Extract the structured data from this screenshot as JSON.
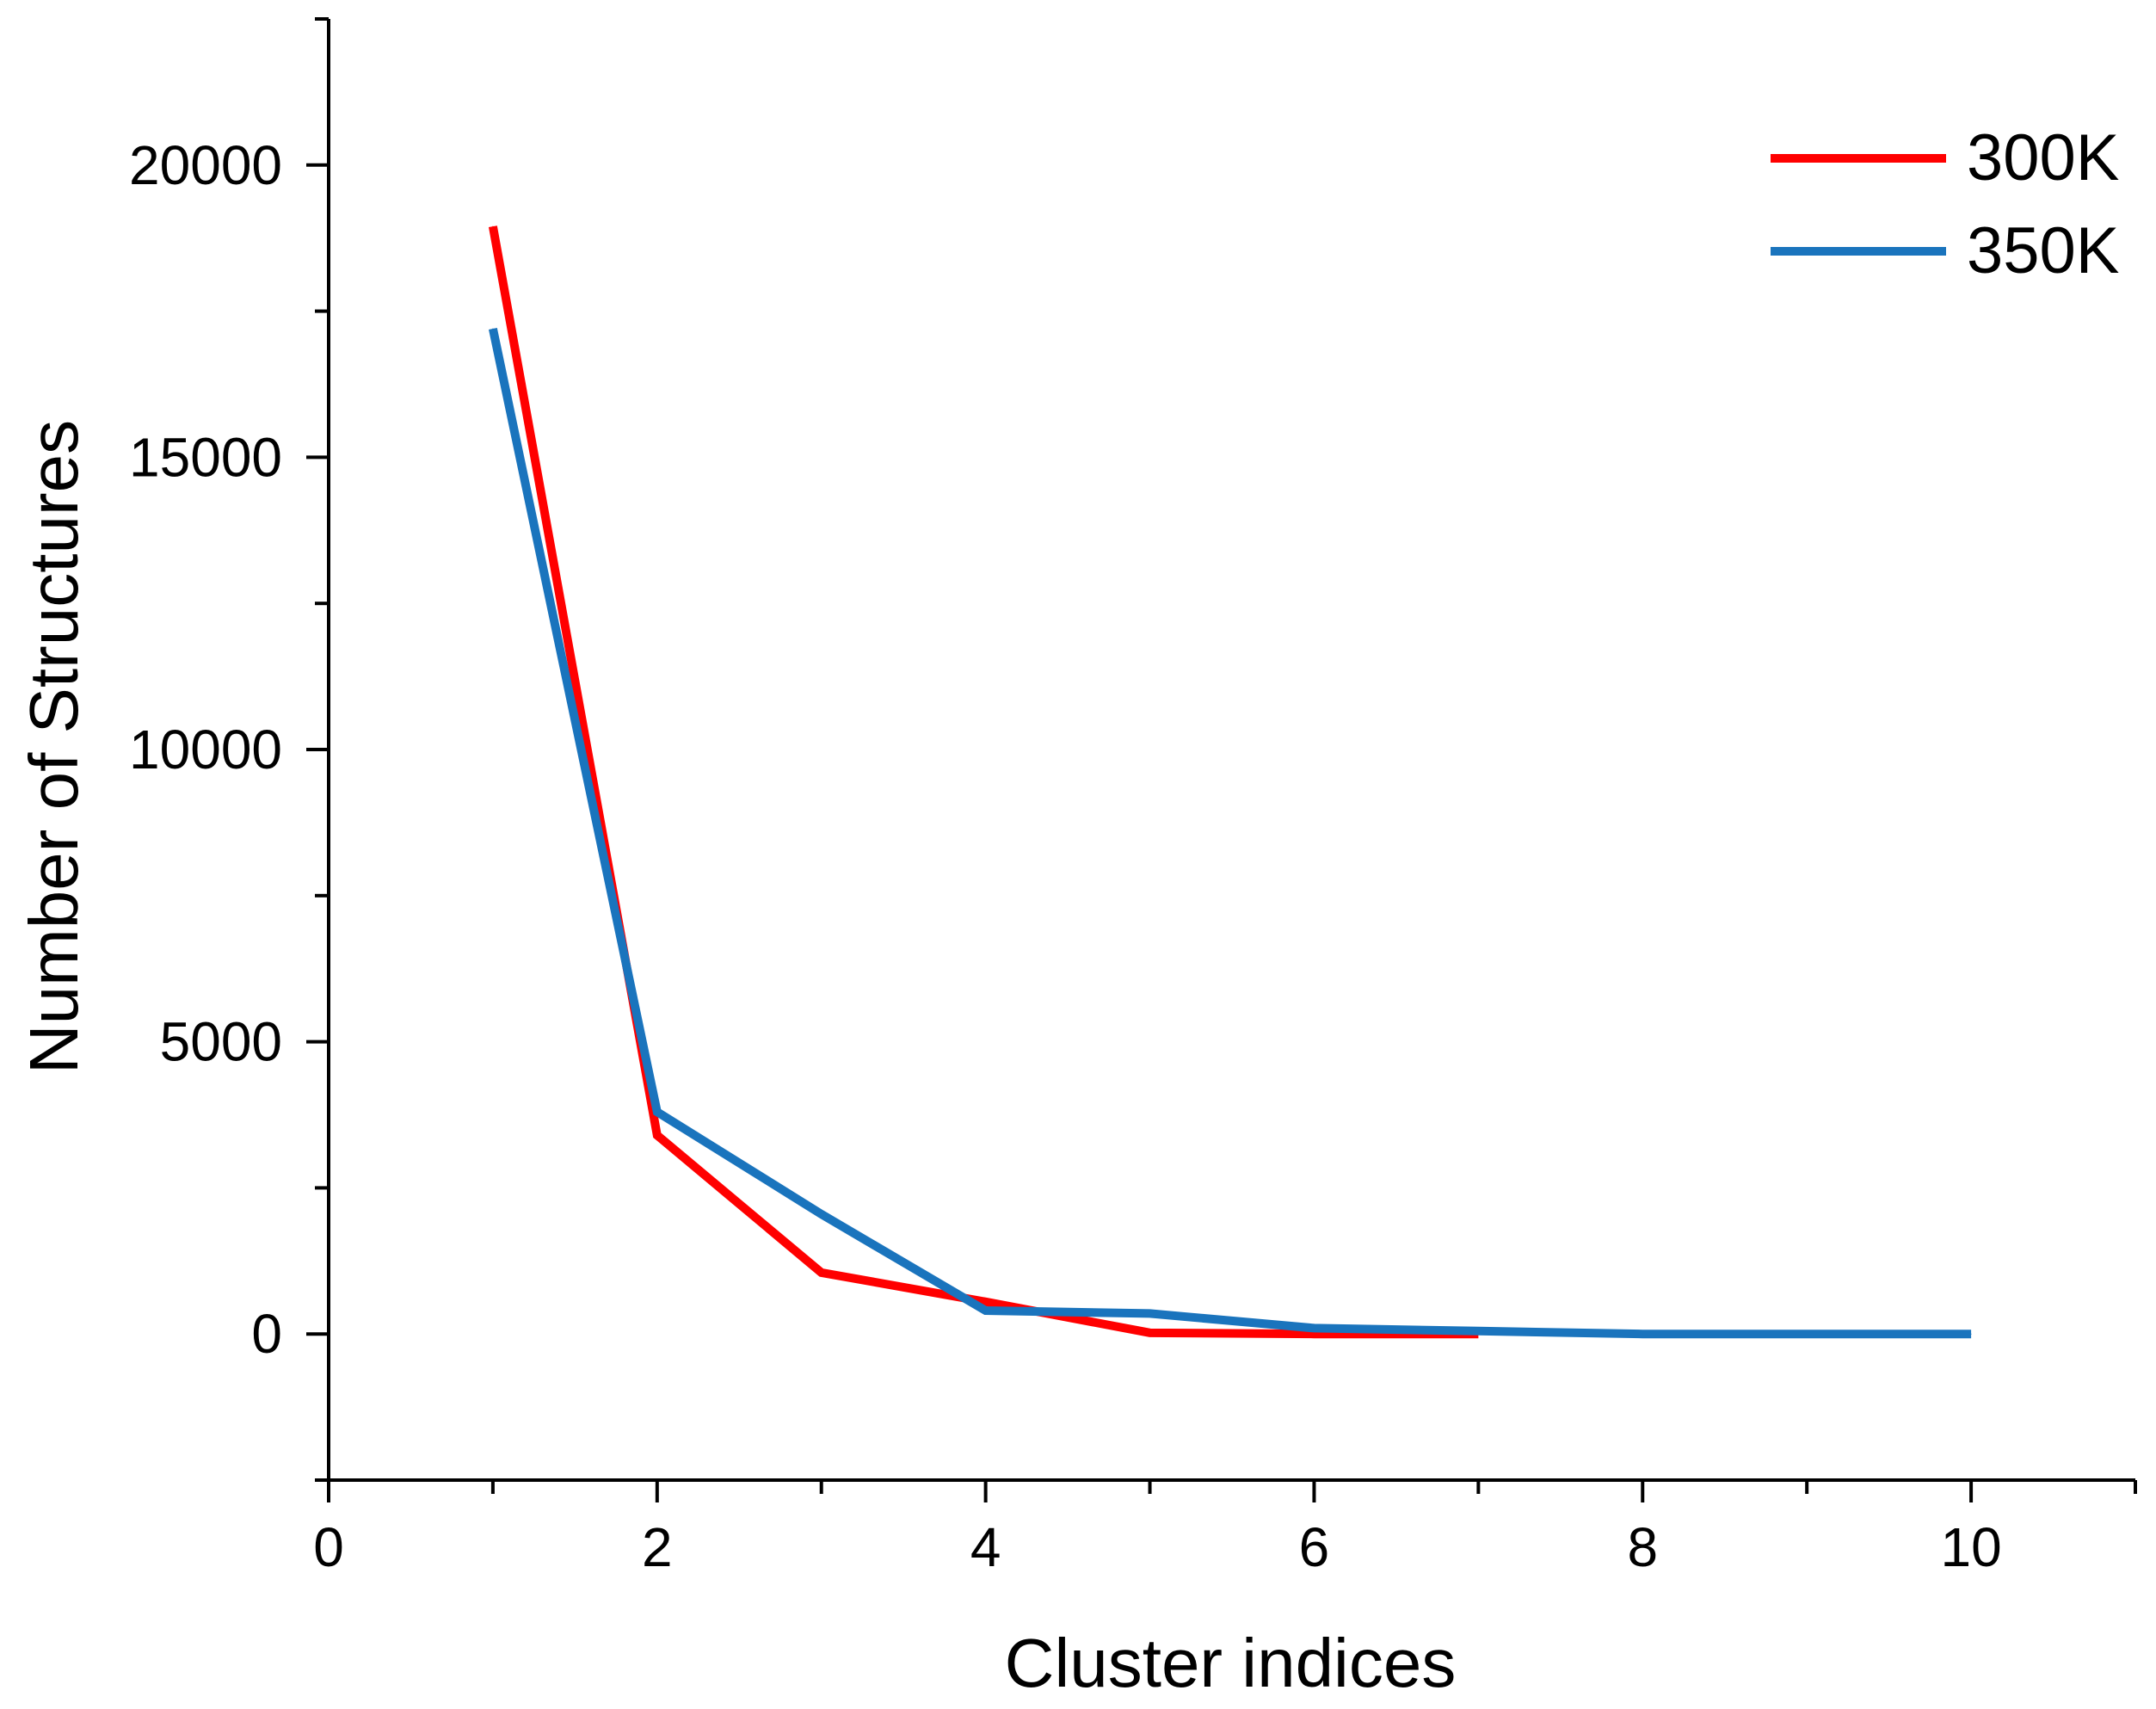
{
  "chart_data": {
    "type": "line",
    "title": "",
    "xlabel": "Cluster indices",
    "ylabel": "Number of Structures",
    "xlim": [
      0,
      11
    ],
    "ylim": [
      -2500,
      22500
    ],
    "xticks": [
      0,
      2,
      4,
      6,
      8,
      10
    ],
    "yticks": [
      0,
      5000,
      10000,
      15000,
      20000
    ],
    "grid": false,
    "legend_position": "top-right",
    "series": [
      {
        "name": "300K",
        "color": "#ff0000",
        "x": [
          1,
          2,
          3,
          4,
          5,
          6,
          7
        ],
        "y": [
          18950,
          3400,
          1050,
          550,
          20,
          0,
          0
        ]
      },
      {
        "name": "350K",
        "color": "#1a74bd",
        "x": [
          1,
          2,
          3,
          4,
          5,
          6,
          7,
          8,
          9,
          10
        ],
        "y": [
          17200,
          3800,
          2050,
          400,
          350,
          100,
          50,
          0,
          0,
          0
        ]
      }
    ]
  }
}
